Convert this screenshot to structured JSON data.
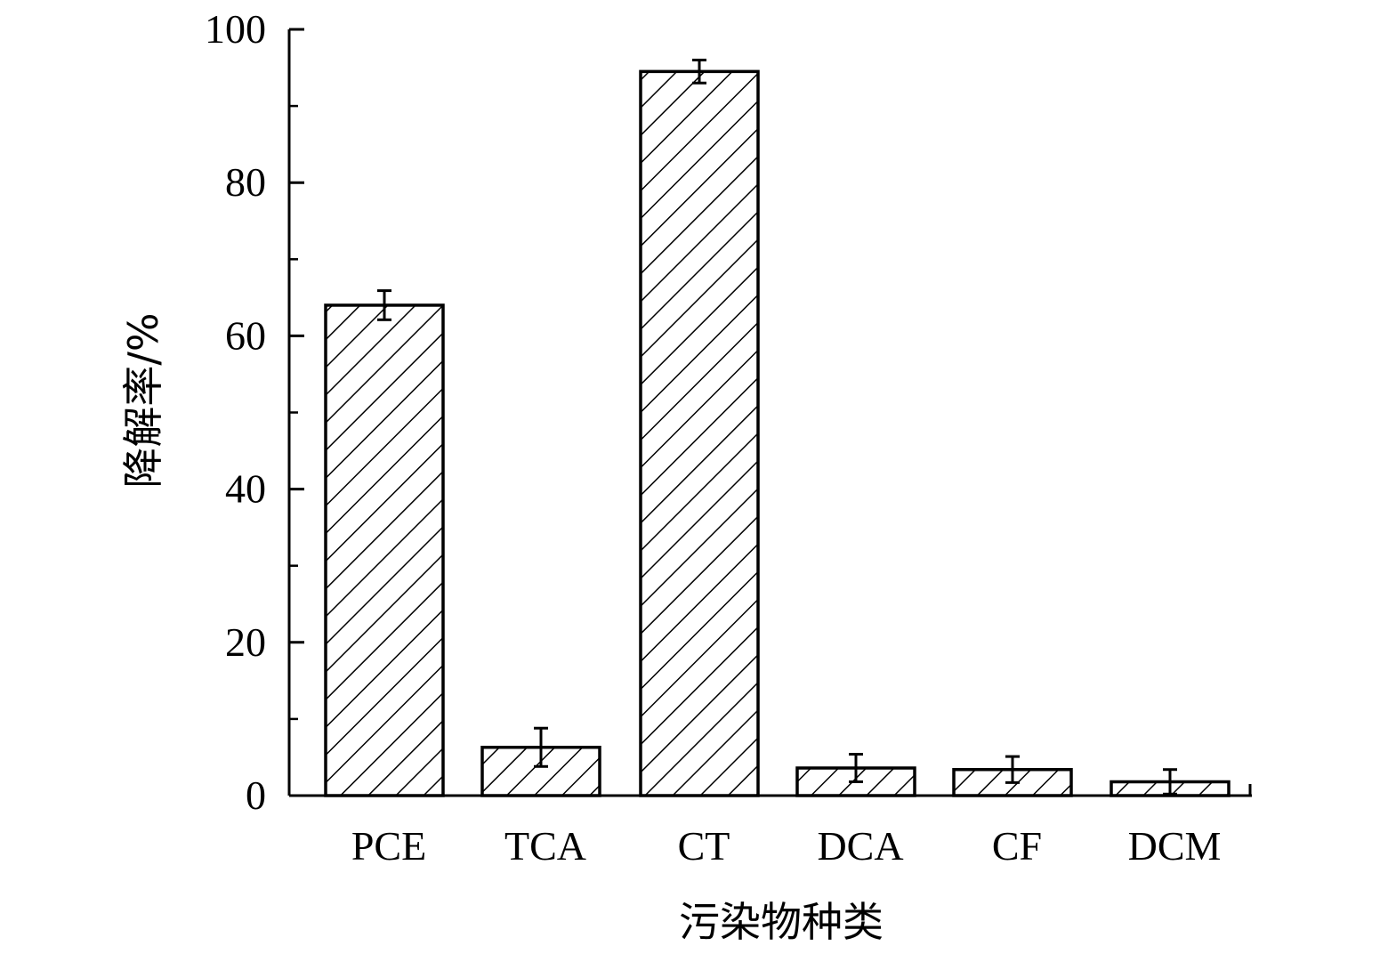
{
  "chart_data": {
    "type": "bar",
    "title": "",
    "xlabel": "污染物种类",
    "ylabel": "降解率/%",
    "categories": [
      "PCE",
      "TCA",
      "CT",
      "DCA",
      "CF",
      "DCM"
    ],
    "values": [
      64,
      6.3,
      94.5,
      3.6,
      3.4,
      1.8
    ],
    "errors": [
      1.9,
      2.5,
      1.5,
      1.8,
      1.7,
      1.6
    ],
    "ylim": [
      0,
      100
    ],
    "yticks": [
      0,
      20,
      40,
      60,
      80,
      100
    ],
    "ytick_labels": [
      "0",
      "20",
      "40",
      "60",
      "80",
      "100"
    ],
    "minor_ytick_step": 10,
    "grid": false,
    "legend": "none",
    "bar_pattern": "diagonal-hatch",
    "bar_color": "#000000"
  }
}
